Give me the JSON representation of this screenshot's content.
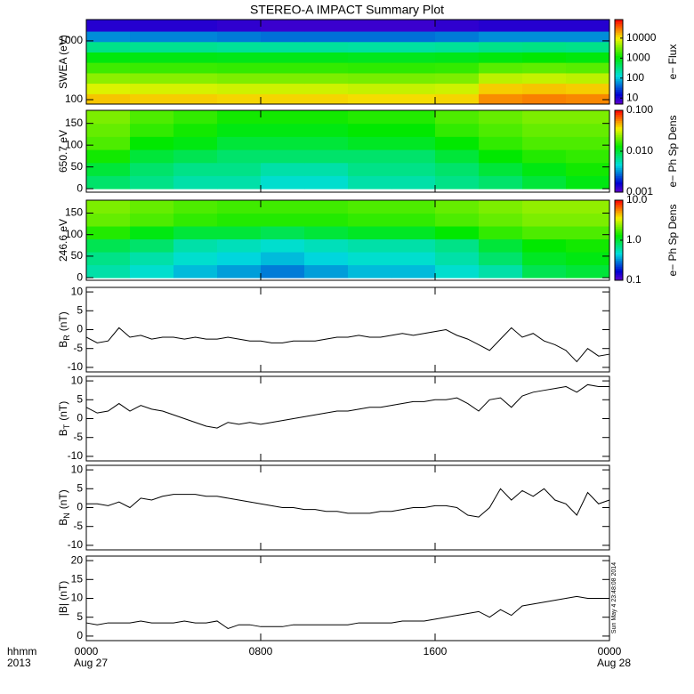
{
  "title": "STEREO-A IMPACT Summary Plot",
  "timestamp": "Sun May  4 23:48:08 2014",
  "x_axis": {
    "labels": [
      "hhmm",
      "2013"
    ],
    "xlim": [
      0,
      24
    ],
    "xticks": [
      {
        "value": 0,
        "label": "0000"
      },
      {
        "value": 8,
        "label": "0800"
      },
      {
        "value": 16,
        "label": "1600"
      },
      {
        "value": 24,
        "label": "0000"
      }
    ],
    "xtick_sublabels": [
      {
        "value": 0,
        "label": "Aug 27"
      },
      {
        "value": 24,
        "label": "Aug 28"
      }
    ]
  },
  "chart_data": [
    {
      "type": "heatmap",
      "ylabel": "SWEA (eV)",
      "ylog": true,
      "ylim": [
        84,
        2300
      ],
      "yticks": [
        100,
        1000
      ],
      "zlabel": "e− Flux",
      "zlog": true,
      "zlim": [
        5,
        85000
      ],
      "zticks": [
        10,
        100,
        1000,
        10000
      ],
      "x_edges": [
        0,
        2,
        4,
        6,
        8,
        10,
        12,
        14,
        16,
        18,
        20,
        22,
        24
      ],
      "y_edges": [
        84,
        126,
        190,
        285,
        430,
        645,
        970,
        1460,
        2300
      ],
      "z": [
        [
          15000,
          14000,
          14000,
          13000,
          13000,
          13000,
          12000,
          12000,
          13000,
          25000,
          28000,
          26000
        ],
        [
          8000,
          7500,
          7500,
          7000,
          7000,
          7000,
          6500,
          6500,
          7000,
          14000,
          15000,
          14000
        ],
        [
          4000,
          3800,
          3800,
          3500,
          3500,
          3500,
          3300,
          3300,
          3500,
          6000,
          6500,
          6000
        ],
        [
          2000,
          1900,
          1900,
          1800,
          1800,
          1800,
          1700,
          1700,
          1800,
          2500,
          2700,
          2500
        ],
        [
          1000,
          950,
          950,
          900,
          900,
          900,
          850,
          850,
          900,
          1000,
          1100,
          1000
        ],
        [
          300,
          280,
          280,
          260,
          250,
          250,
          240,
          240,
          260,
          300,
          320,
          300
        ],
        [
          60,
          55,
          55,
          50,
          45,
          45,
          45,
          45,
          50,
          60,
          60,
          60
        ],
        [
          10,
          10,
          10,
          9,
          8,
          8,
          8,
          8,
          9,
          10,
          10,
          10
        ]
      ]
    },
    {
      "type": "heatmap",
      "ylabel": "650.7 eV",
      "ylog": false,
      "ylim": [
        -8,
        180
      ],
      "yticks": [
        0,
        50,
        100,
        150
      ],
      "zlabel": "e− Ph Sp Dens",
      "zlog": true,
      "zlim": [
        0.001,
        0.1
      ],
      "zticks": [
        0.001,
        {
          "value": 0.01,
          "label": "0.010"
        },
        {
          "value": 0.1,
          "label": "0.100"
        }
      ],
      "x_edges": [
        0,
        2,
        4,
        6,
        8,
        10,
        12,
        14,
        16,
        18,
        20,
        22,
        24
      ],
      "y_edges": [
        0,
        30,
        60,
        90,
        120,
        150,
        180
      ],
      "z": [
        [
          0.008,
          0.007,
          0.006,
          0.006,
          0.005,
          0.005,
          0.006,
          0.006,
          0.007,
          0.008,
          0.01,
          0.012
        ],
        [
          0.01,
          0.008,
          0.007,
          0.007,
          0.006,
          0.006,
          0.007,
          0.007,
          0.008,
          0.01,
          0.012,
          0.014
        ],
        [
          0.014,
          0.01,
          0.009,
          0.008,
          0.008,
          0.008,
          0.008,
          0.008,
          0.01,
          0.013,
          0.015,
          0.016
        ],
        [
          0.018,
          0.013,
          0.012,
          0.01,
          0.01,
          0.01,
          0.011,
          0.011,
          0.013,
          0.016,
          0.018,
          0.018
        ],
        [
          0.02,
          0.016,
          0.014,
          0.012,
          0.012,
          0.012,
          0.013,
          0.013,
          0.016,
          0.018,
          0.02,
          0.02
        ],
        [
          0.022,
          0.018,
          0.016,
          0.014,
          0.014,
          0.014,
          0.015,
          0.015,
          0.018,
          0.02,
          0.022,
          0.022
        ]
      ]
    },
    {
      "type": "heatmap",
      "ylabel": "246.6 eV",
      "ylog": false,
      "ylim": [
        -6,
        180
      ],
      "yticks": [
        0,
        50,
        100,
        150
      ],
      "zlabel": "e− Ph Sp Dens",
      "zlog": true,
      "zlim": [
        0.1,
        10
      ],
      "zticks": [
        0.1,
        {
          "value": 1,
          "label": "1.0"
        },
        {
          "value": 10,
          "label": "10.0"
        }
      ],
      "x_edges": [
        0,
        2,
        4,
        6,
        8,
        10,
        12,
        14,
        16,
        18,
        20,
        22,
        24
      ],
      "y_edges": [
        0,
        30,
        60,
        90,
        120,
        150,
        180
      ],
      "z": [
        [
          0.6,
          0.5,
          0.4,
          0.35,
          0.3,
          0.35,
          0.4,
          0.4,
          0.5,
          0.6,
          0.9,
          1.0
        ],
        [
          0.7,
          0.6,
          0.5,
          0.45,
          0.4,
          0.45,
          0.5,
          0.5,
          0.6,
          0.8,
          1.1,
          1.2
        ],
        [
          0.9,
          0.8,
          0.6,
          0.55,
          0.5,
          0.55,
          0.6,
          0.6,
          0.7,
          1.0,
          1.3,
          1.4
        ],
        [
          1.5,
          1.2,
          1.0,
          1.0,
          0.9,
          1.0,
          1.1,
          1.1,
          1.3,
          1.6,
          1.8,
          1.8
        ],
        [
          2.0,
          1.8,
          1.6,
          1.5,
          1.5,
          1.5,
          1.6,
          1.6,
          1.8,
          2.0,
          2.2,
          2.2
        ],
        [
          2.2,
          2.0,
          1.8,
          1.7,
          1.7,
          1.7,
          1.8,
          1.8,
          2.0,
          2.2,
          2.4,
          2.4
        ]
      ]
    },
    {
      "type": "line",
      "ylabel": "B",
      "ylabel_sub": "R",
      "ylabel_unit": "(nT)",
      "ylim": [
        -11.2,
        11.2
      ],
      "yticks": [
        -10,
        -5,
        0,
        5,
        10
      ],
      "color": "#000000",
      "x": [
        0,
        0.5,
        1,
        1.5,
        2,
        2.5,
        3,
        3.5,
        4,
        4.5,
        5,
        5.5,
        6,
        6.5,
        7,
        7.5,
        8,
        8.5,
        9,
        9.5,
        10,
        10.5,
        11,
        11.5,
        12,
        12.5,
        13,
        13.5,
        14,
        14.5,
        15,
        15.5,
        16,
        16.5,
        17,
        17.5,
        18,
        18.5,
        19,
        19.5,
        20,
        20.5,
        21,
        21.5,
        22,
        22.5,
        23,
        23.5,
        24
      ],
      "values": [
        -2,
        -3.5,
        -3,
        0.5,
        -2,
        -1.5,
        -2.5,
        -2,
        -2,
        -2.5,
        -2,
        -2.5,
        -2.5,
        -2,
        -2.5,
        -3,
        -3,
        -3.5,
        -3.5,
        -3,
        -3,
        -3,
        -2.5,
        -2,
        -2,
        -1.5,
        -2,
        -2,
        -1.5,
        -1,
        -1.5,
        -1,
        -0.5,
        0,
        -1.5,
        -2.5,
        -4,
        -5.5,
        -2.5,
        0.5,
        -2,
        -1,
        -3,
        -4,
        -5.5,
        -8.5,
        -5,
        -7,
        -6.5
      ]
    },
    {
      "type": "line",
      "ylabel": "B",
      "ylabel_sub": "T",
      "ylabel_unit": "(nT)",
      "ylim": [
        -11.2,
        11.2
      ],
      "yticks": [
        -10,
        -5,
        0,
        5,
        10
      ],
      "color": "#000000",
      "x": [
        0,
        0.5,
        1,
        1.5,
        2,
        2.5,
        3,
        3.5,
        4,
        4.5,
        5,
        5.5,
        6,
        6.5,
        7,
        7.5,
        8,
        8.5,
        9,
        9.5,
        10,
        10.5,
        11,
        11.5,
        12,
        12.5,
        13,
        13.5,
        14,
        14.5,
        15,
        15.5,
        16,
        16.5,
        17,
        17.5,
        18,
        18.5,
        19,
        19.5,
        20,
        20.5,
        21,
        21.5,
        22,
        22.5,
        23,
        23.5,
        24
      ],
      "values": [
        3,
        1.5,
        2,
        4,
        2,
        3.5,
        2.5,
        2,
        1,
        0,
        -1,
        -2,
        -2.5,
        -1,
        -1.5,
        -1,
        -1.5,
        -1,
        -0.5,
        0,
        0.5,
        1,
        1.5,
        2,
        2,
        2.5,
        3,
        3,
        3.5,
        4,
        4.5,
        4.5,
        5,
        5,
        5.5,
        4,
        2,
        5,
        5.5,
        3,
        6,
        7,
        7.5,
        8,
        8.5,
        7,
        9,
        8.5,
        8.5
      ]
    },
    {
      "type": "line",
      "ylabel": "B",
      "ylabel_sub": "N",
      "ylabel_unit": "(nT)",
      "ylim": [
        -11.2,
        11.2
      ],
      "yticks": [
        -10,
        -5,
        0,
        5,
        10
      ],
      "color": "#000000",
      "x": [
        0,
        0.5,
        1,
        1.5,
        2,
        2.5,
        3,
        3.5,
        4,
        4.5,
        5,
        5.5,
        6,
        6.5,
        7,
        7.5,
        8,
        8.5,
        9,
        9.5,
        10,
        10.5,
        11,
        11.5,
        12,
        12.5,
        13,
        13.5,
        14,
        14.5,
        15,
        15.5,
        16,
        16.5,
        17,
        17.5,
        18,
        18.5,
        19,
        19.5,
        20,
        20.5,
        21,
        21.5,
        22,
        22.5,
        23,
        23.5,
        24
      ],
      "values": [
        1,
        1,
        0.5,
        1.5,
        0,
        2.5,
        2,
        3,
        3.5,
        3.5,
        3.5,
        3,
        3,
        2.5,
        2,
        1.5,
        1,
        0.5,
        0,
        0,
        -0.5,
        -0.5,
        -1,
        -1,
        -1.5,
        -1.5,
        -1.5,
        -1,
        -1,
        -0.5,
        0,
        0,
        0.5,
        0.5,
        0,
        -2,
        -2.5,
        0,
        5,
        2,
        4.5,
        3,
        5,
        2,
        1,
        -2,
        4,
        1,
        2
      ]
    },
    {
      "type": "line",
      "ylabel": "|B| (nT)",
      "ylim": [
        -1.2,
        21.2
      ],
      "yticks": [
        0,
        5,
        10,
        15,
        20
      ],
      "color": "#000000",
      "x": [
        0,
        0.5,
        1,
        1.5,
        2,
        2.5,
        3,
        3.5,
        4,
        4.5,
        5,
        5.5,
        6,
        6.5,
        7,
        7.5,
        8,
        8.5,
        9,
        9.5,
        10,
        10.5,
        11,
        11.5,
        12,
        12.5,
        13,
        13.5,
        14,
        14.5,
        15,
        15.5,
        16,
        16.5,
        17,
        17.5,
        18,
        18.5,
        19,
        19.5,
        20,
        20.5,
        21,
        21.5,
        22,
        22.5,
        23,
        23.5,
        24
      ],
      "values": [
        3.5,
        3,
        3.5,
        3.5,
        3.5,
        4,
        3.5,
        3.5,
        3.5,
        4,
        3.5,
        3.5,
        4,
        2,
        3,
        3,
        2.5,
        2.5,
        2.5,
        3,
        3,
        3,
        3,
        3,
        3,
        3.5,
        3.5,
        3.5,
        3.5,
        4,
        4,
        4,
        4.5,
        5,
        5.5,
        6,
        6.5,
        5,
        7,
        5.5,
        8,
        8.5,
        9,
        9.5,
        10,
        10.5,
        10,
        10,
        10
      ]
    }
  ]
}
